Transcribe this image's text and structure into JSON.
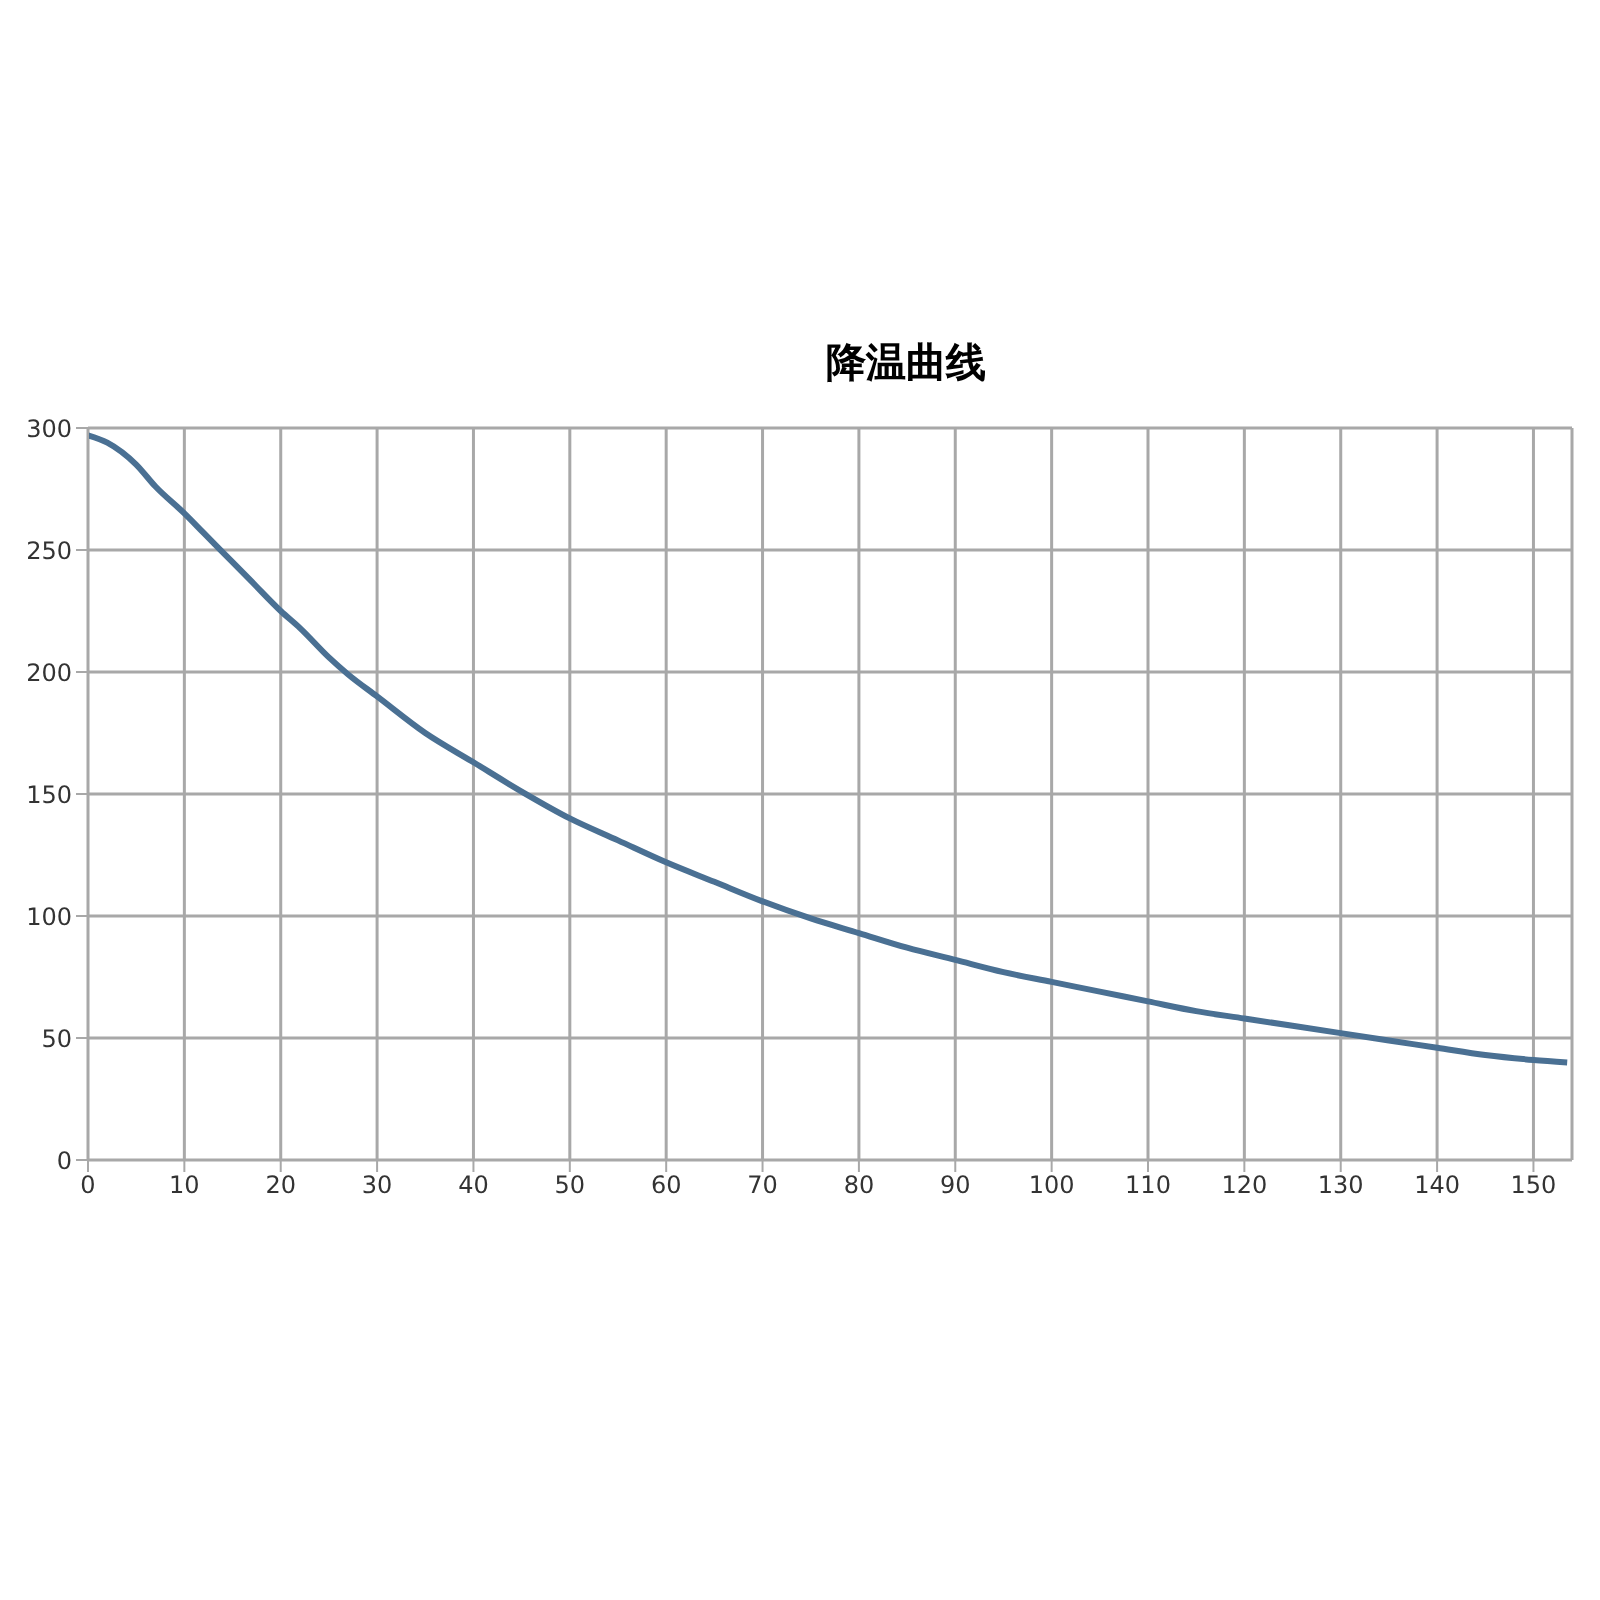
{
  "chart_data": {
    "type": "line",
    "title": "降温曲线",
    "x": [
      0,
      2,
      5,
      7,
      10,
      12,
      15,
      17,
      20,
      22,
      25,
      27,
      30,
      35,
      40,
      45,
      50,
      55,
      60,
      65,
      70,
      75,
      80,
      85,
      90,
      95,
      100,
      105,
      110,
      115,
      120,
      125,
      130,
      135,
      140,
      145,
      150,
      153.5
    ],
    "series": [
      {
        "color": "#4a7093",
        "values": [
          297,
          294,
          285,
          276,
          265,
          257,
          245,
          237,
          225,
          218,
          206,
          199,
          190,
          175,
          163,
          151,
          140,
          131,
          122,
          114,
          106,
          99,
          93,
          87,
          82,
          77,
          73,
          69,
          65,
          61,
          58,
          55,
          52,
          49,
          46,
          43,
          41,
          40
        ]
      }
    ],
    "xlim": [
      0,
      154
    ],
    "xticks": [
      0,
      10,
      20,
      30,
      40,
      50,
      60,
      70,
      80,
      90,
      100,
      110,
      120,
      130,
      140,
      150
    ],
    "ylim": [
      0,
      300
    ],
    "yticks": [
      0,
      50,
      100,
      150,
      200,
      250,
      300
    ],
    "grid": true,
    "legend": false,
    "marker": "none",
    "line_style": "solid"
  }
}
